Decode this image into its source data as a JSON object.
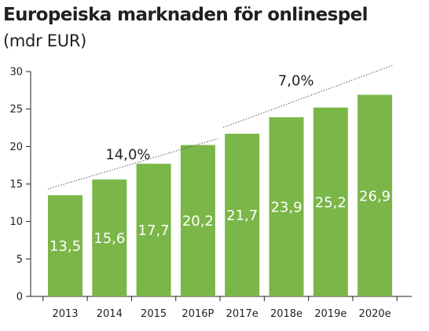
{
  "title": "Europeiska marknaden för onlinespel",
  "subtitle": "(mdr EUR)",
  "colors": {
    "bar": "#7ab648",
    "axis": "#231f20",
    "trend": "#555555"
  },
  "chart_data": {
    "type": "bar",
    "title": "Europeiska marknaden för onlinespel",
    "subtitle": "(mdr EUR)",
    "categories": [
      "2013",
      "2014",
      "2015",
      "2016P",
      "2017e",
      "2018e",
      "2019e",
      "2020e"
    ],
    "values": [
      13.5,
      15.6,
      17.7,
      20.2,
      21.7,
      23.9,
      25.2,
      26.9
    ],
    "value_labels": [
      "13,5",
      "15,6",
      "17,7",
      "20,2",
      "21,7",
      "23,9",
      "25,2",
      "26,9"
    ],
    "ylim": [
      0,
      30
    ],
    "yticks": [
      0,
      5,
      10,
      15,
      20,
      25,
      30
    ],
    "xlabel": "",
    "ylabel": "",
    "grid": false,
    "legend": "none",
    "annotations": [
      {
        "text": "14,0%",
        "from": "2013",
        "to": "2016P"
      },
      {
        "text": "7,0%",
        "from": "2017e",
        "to": "2020e"
      }
    ]
  }
}
